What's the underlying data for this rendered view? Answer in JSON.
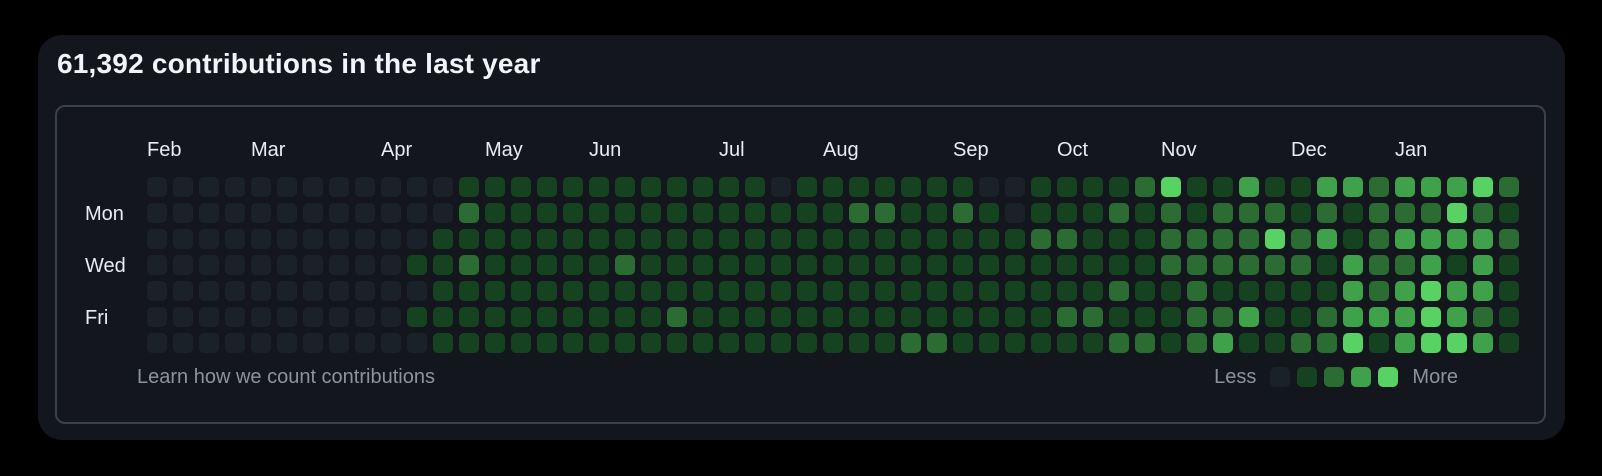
{
  "header": {
    "title": "61,392 contributions in the last year"
  },
  "chart_data": {
    "type": "heatmap",
    "title": "Contribution calendar heatmap",
    "weeks": 53,
    "days_per_week": 7,
    "months": [
      {
        "label": "Feb",
        "col": 0
      },
      {
        "label": "Mar",
        "col": 4
      },
      {
        "label": "Apr",
        "col": 9
      },
      {
        "label": "May",
        "col": 13
      },
      {
        "label": "Jun",
        "col": 17
      },
      {
        "label": "Jul",
        "col": 22
      },
      {
        "label": "Aug",
        "col": 26
      },
      {
        "label": "Sep",
        "col": 31
      },
      {
        "label": "Oct",
        "col": 35
      },
      {
        "label": "Nov",
        "col": 39
      },
      {
        "label": "Dec",
        "col": 44
      },
      {
        "label": "Jan",
        "col": 48
      }
    ],
    "day_labels": [
      {
        "label": "Mon",
        "row": 1
      },
      {
        "label": "Wed",
        "row": 3
      },
      {
        "label": "Fri",
        "row": 5
      }
    ],
    "level_colors": {
      "0": "#1b2129",
      "1": "#16431f",
      "2": "#2a6c31",
      "3": "#40a14b",
      "4": "#58d263"
    },
    "grid_rows": [
      [
        0,
        0,
        0,
        0,
        0,
        0,
        0,
        0,
        0,
        0,
        0,
        0,
        1,
        1,
        1,
        1,
        1,
        1,
        1,
        1,
        1,
        1,
        1,
        1,
        0,
        1,
        1,
        1,
        1,
        1,
        1,
        1,
        0,
        0,
        1,
        1,
        1,
        1,
        2,
        4,
        1,
        1,
        3,
        1,
        1,
        3,
        3,
        2,
        3,
        3,
        3,
        4,
        2
      ],
      [
        0,
        0,
        0,
        0,
        0,
        0,
        0,
        0,
        0,
        0,
        0,
        0,
        2,
        1,
        1,
        1,
        1,
        1,
        1,
        1,
        1,
        1,
        1,
        1,
        1,
        1,
        1,
        2,
        2,
        1,
        1,
        2,
        1,
        0,
        1,
        1,
        1,
        2,
        1,
        2,
        1,
        2,
        2,
        2,
        1,
        2,
        1,
        2,
        2,
        2,
        4,
        2,
        1
      ],
      [
        0,
        0,
        0,
        0,
        0,
        0,
        0,
        0,
        0,
        0,
        0,
        1,
        1,
        1,
        1,
        1,
        1,
        1,
        1,
        1,
        1,
        1,
        1,
        1,
        1,
        1,
        1,
        1,
        1,
        1,
        1,
        1,
        1,
        1,
        2,
        2,
        1,
        1,
        1,
        2,
        2,
        2,
        2,
        4,
        2,
        3,
        1,
        2,
        3,
        3,
        3,
        3,
        2
      ],
      [
        0,
        0,
        0,
        0,
        0,
        0,
        0,
        0,
        0,
        0,
        1,
        1,
        2,
        1,
        1,
        1,
        1,
        1,
        2,
        1,
        1,
        1,
        1,
        1,
        1,
        1,
        1,
        1,
        1,
        1,
        1,
        1,
        1,
        1,
        1,
        1,
        1,
        1,
        1,
        2,
        2,
        2,
        2,
        2,
        2,
        1,
        3,
        2,
        2,
        3,
        1,
        3,
        1
      ],
      [
        0,
        0,
        0,
        0,
        0,
        0,
        0,
        0,
        0,
        0,
        0,
        1,
        1,
        1,
        1,
        1,
        1,
        1,
        1,
        1,
        1,
        1,
        1,
        1,
        1,
        1,
        1,
        1,
        1,
        1,
        1,
        1,
        1,
        1,
        1,
        1,
        1,
        2,
        1,
        1,
        2,
        1,
        1,
        1,
        1,
        1,
        3,
        2,
        3,
        4,
        3,
        3,
        1
      ],
      [
        0,
        0,
        0,
        0,
        0,
        0,
        0,
        0,
        0,
        0,
        1,
        1,
        1,
        1,
        1,
        1,
        1,
        1,
        1,
        1,
        2,
        1,
        1,
        1,
        1,
        1,
        1,
        1,
        1,
        1,
        1,
        1,
        1,
        1,
        1,
        2,
        2,
        1,
        1,
        1,
        2,
        2,
        3,
        1,
        1,
        2,
        3,
        3,
        3,
        4,
        3,
        2,
        1
      ],
      [
        0,
        0,
        0,
        0,
        0,
        0,
        0,
        0,
        0,
        0,
        0,
        1,
        1,
        1,
        1,
        1,
        1,
        1,
        1,
        1,
        1,
        1,
        1,
        1,
        1,
        1,
        1,
        1,
        1,
        2,
        2,
        1,
        1,
        1,
        1,
        1,
        1,
        2,
        2,
        1,
        2,
        3,
        1,
        1,
        2,
        2,
        4,
        1,
        3,
        4,
        4,
        3,
        1
      ]
    ]
  },
  "footer": {
    "link_label": "Learn how we count contributions",
    "legend": {
      "less": "Less",
      "more": "More",
      "levels": [
        0,
        1,
        2,
        3,
        4
      ]
    }
  }
}
